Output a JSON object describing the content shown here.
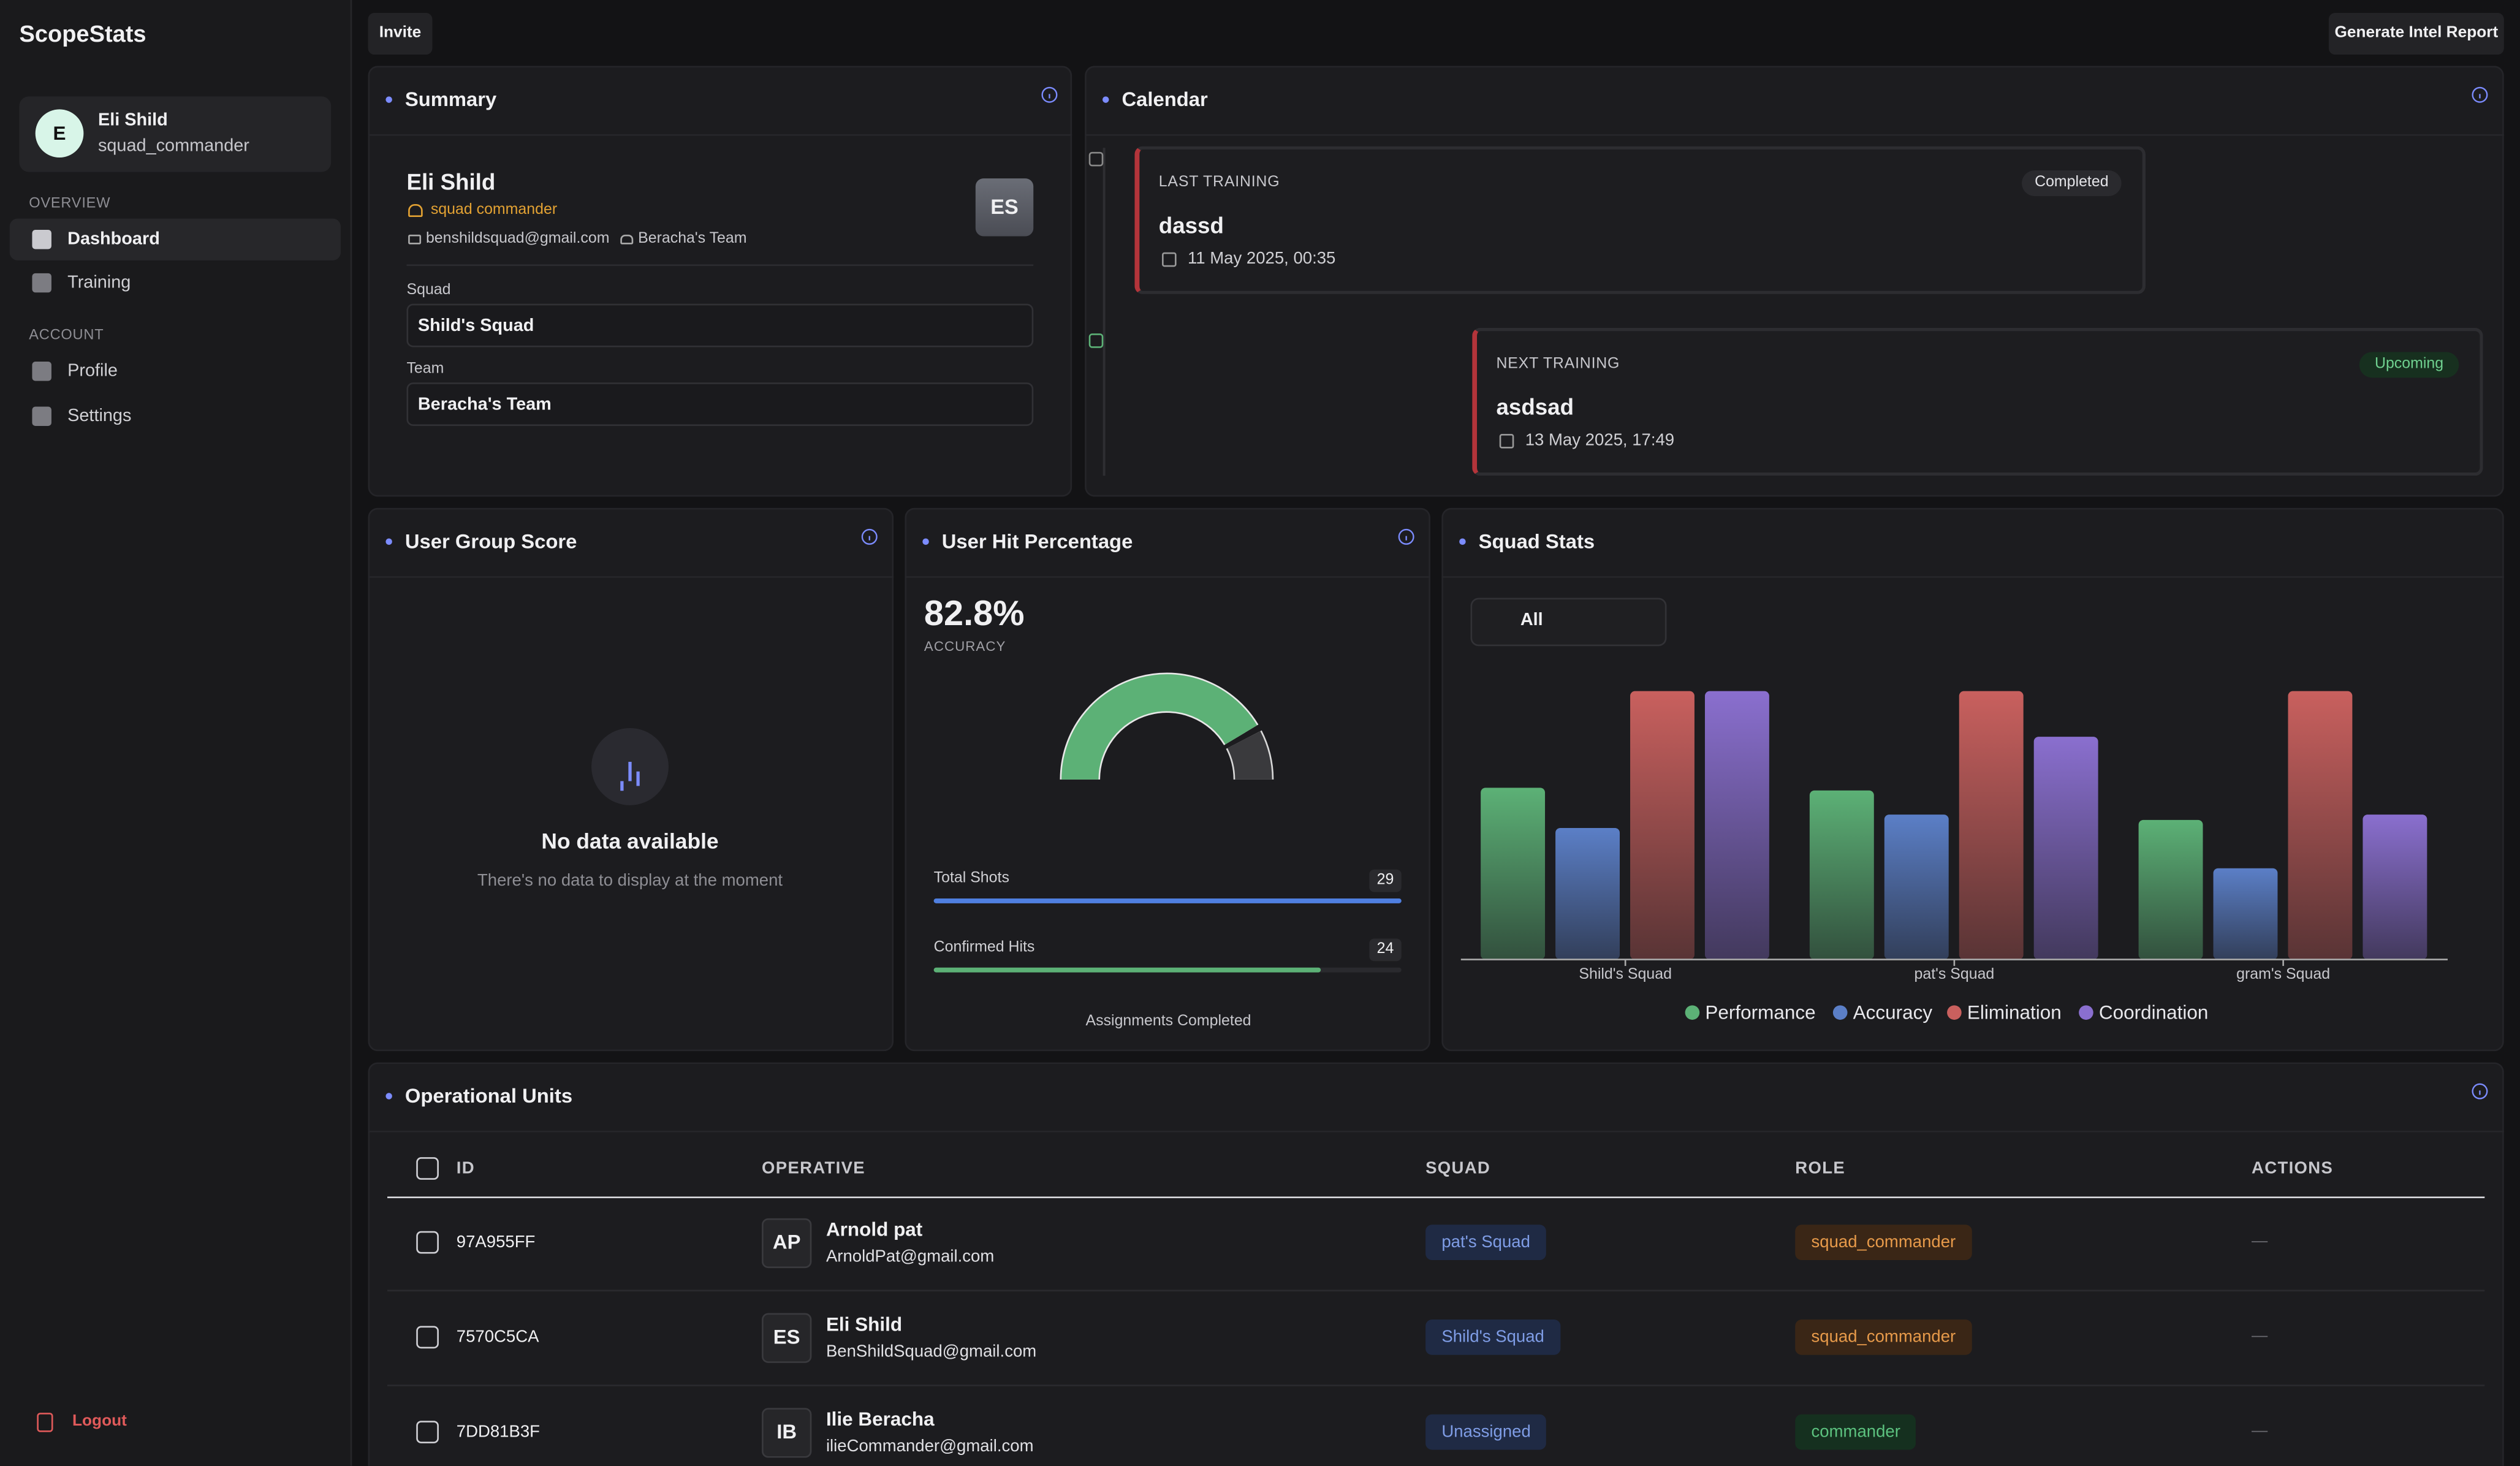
{
  "sidebar": {
    "brand": "ScopeStats",
    "user": {
      "initial": "E",
      "name": "Eli Shild",
      "handle": "squad_commander"
    },
    "sections": [
      {
        "title": "OVERVIEW",
        "items": [
          "Dashboard",
          "Training"
        ]
      },
      {
        "title": "ACCOUNT",
        "items": [
          "Profile",
          "Settings"
        ]
      }
    ],
    "logout": "Logout"
  },
  "header": {
    "invite": "Invite",
    "report": "Generate Intel Report"
  },
  "summary": {
    "title": "Summary",
    "name": "Eli Shild",
    "role": "squad commander",
    "email": "benshildsquad@gmail.com",
    "team_tag": "Beracha's Team",
    "avatar": "ES",
    "fields": [
      {
        "label": "Squad",
        "value": "Shild's Squad"
      },
      {
        "label": "Team",
        "value": "Beracha's Team"
      }
    ]
  },
  "calendar": {
    "title": "Calendar",
    "events": [
      {
        "kind": "LAST TRAINING",
        "name": "dassd",
        "date": "11 May 2025, 00:35",
        "status": "Completed"
      },
      {
        "kind": "NEXT TRAINING",
        "name": "asdsad",
        "date": "13 May 2025, 17:49",
        "status": "Upcoming"
      }
    ]
  },
  "group_score": {
    "title": "User Group Score",
    "empty_title": "No data available",
    "empty_text": "There's no data to display at the moment"
  },
  "hit_percentage": {
    "title": "User Hit Percentage",
    "value": 82.8,
    "value_label": "82.8%",
    "caption": "ACCURACY",
    "stats": [
      {
        "label": "Total Shots",
        "value": 29
      },
      {
        "label": "Confirmed Hits",
        "value": 24
      }
    ],
    "footer": "Assignments Completed"
  },
  "chart_data": {
    "type": "bar",
    "title": "Squad Stats",
    "filter": "All",
    "categories": [
      "Shild's Squad",
      "pat's Squad",
      "gram's Squad"
    ],
    "series": [
      {
        "name": "Performance",
        "color": "#5cb176",
        "values": [
          64,
          63,
          52
        ]
      },
      {
        "name": "Accuracy",
        "color": "#5b7fc7",
        "values": [
          49,
          54,
          34
        ]
      },
      {
        "name": "Elimination",
        "color": "#c9605e",
        "values": [
          100,
          100,
          100
        ]
      },
      {
        "name": "Coordination",
        "color": "#8a6fcf",
        "values": [
          100,
          83,
          54
        ]
      }
    ],
    "ylim": [
      0,
      100
    ]
  },
  "operational_units": {
    "title": "Operational Units",
    "columns": [
      "ID",
      "OPERATIVE",
      "SQUAD",
      "ROLE",
      "ACTIONS"
    ],
    "rows": [
      {
        "id": "97A955FF",
        "initials": "AP",
        "name": "Arnold pat",
        "email": "ArnoldPat@gmail.com",
        "squad": "pat's Squad",
        "role": "squad_commander",
        "actions": "—"
      },
      {
        "id": "7570C5CA",
        "initials": "ES",
        "name": "Eli Shild",
        "email": "BenShildSquad@gmail.com",
        "squad": "Shild's Squad",
        "role": "squad_commander",
        "actions": "—"
      },
      {
        "id": "7DD81B3F",
        "initials": "IB",
        "name": "Ilie Beracha",
        "email": "ilieCommander@gmail.com",
        "squad": "Unassigned",
        "role": "commander",
        "actions": "—"
      }
    ]
  }
}
